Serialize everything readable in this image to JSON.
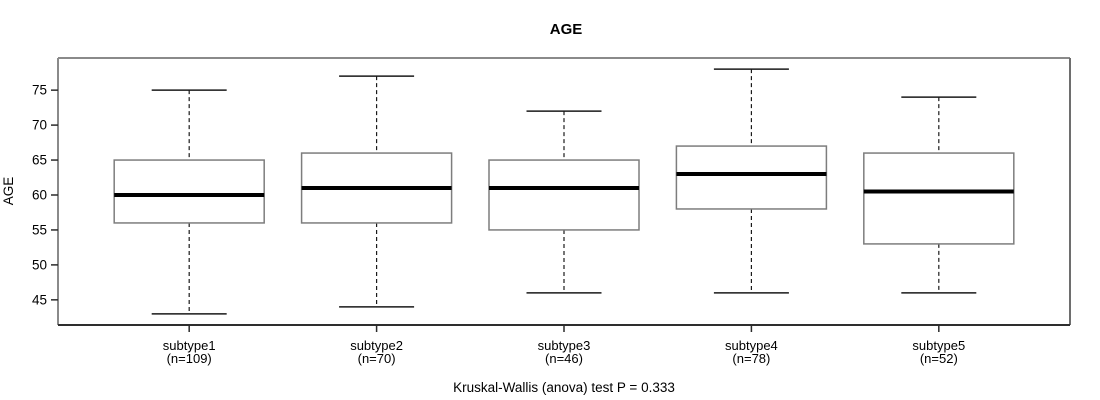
{
  "chart_data": {
    "type": "boxplot",
    "title": "AGE",
    "ylabel": "AGE",
    "xlabel": "",
    "footer": "Kruskal-Wallis (anova) test P = 0.333",
    "p_value": "0.333",
    "categories": [
      "subtype1",
      "subtype2",
      "subtype3",
      "subtype4",
      "subtype5"
    ],
    "series": [
      {
        "name": "subtype1",
        "sublabel": "(n=109)",
        "n": 109,
        "whisker_low": 43,
        "q1": 56,
        "median": 60,
        "q3": 65,
        "whisker_high": 75
      },
      {
        "name": "subtype2",
        "sublabel": "(n=70)",
        "n": 70,
        "whisker_low": 44,
        "q1": 56,
        "median": 61,
        "q3": 66,
        "whisker_high": 77
      },
      {
        "name": "subtype3",
        "sublabel": "(n=46)",
        "n": 46,
        "whisker_low": 46,
        "q1": 55,
        "median": 61,
        "q3": 65,
        "whisker_high": 72
      },
      {
        "name": "subtype4",
        "sublabel": "(n=78)",
        "n": 78,
        "whisker_low": 46,
        "q1": 58,
        "median": 63,
        "q3": 67,
        "whisker_high": 78
      },
      {
        "name": "subtype5",
        "sublabel": "(n=52)",
        "n": 52,
        "whisker_low": 46,
        "q1": 53,
        "median": 60.5,
        "q3": 66,
        "whisker_high": 74
      }
    ],
    "yticks": [
      45,
      50,
      55,
      60,
      65,
      70,
      75
    ],
    "ylim": [
      41.4,
      79.6
    ],
    "grid": false,
    "legend": "none",
    "colors": {
      "background": "#ffffff",
      "frame_light": "#8a8a8a",
      "frame_right": "#6e6e6e",
      "frame_bottom": "#2e2e2e",
      "box_border": "#7d7d7d",
      "box_fill": "#ffffff",
      "median": "#000000",
      "whisker": "#1a1a1a",
      "tick": "#2b2b2b",
      "text": "#000000"
    }
  }
}
